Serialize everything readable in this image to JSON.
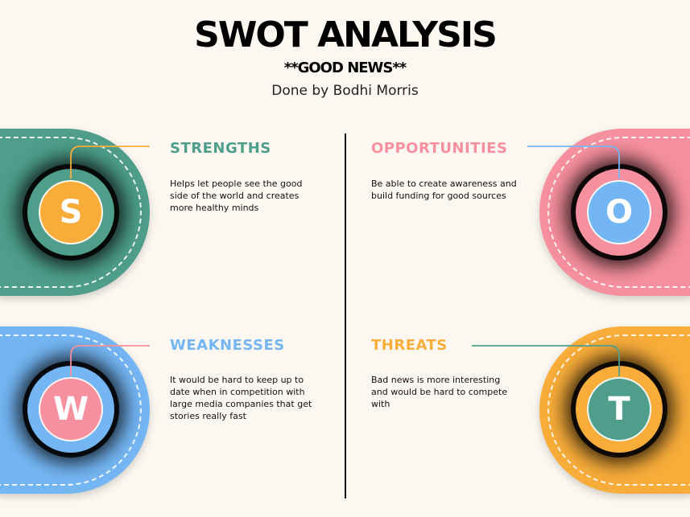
{
  "header": {
    "title": "SWOT ANALYSIS",
    "subtitle": "**GOOD NEWS**",
    "author": "Done by Bodhi Morris"
  },
  "quadrants": {
    "strengths": {
      "letter": "S",
      "heading": "STRENGTHS",
      "text": "Helps let people see the good side of the world and creates more healthy minds",
      "pill_color": "#4e9e8b",
      "circle_color": "#f8ad3a",
      "heading_color": "#4e9e8b",
      "connector_color": "#f8ad3a"
    },
    "opportunities": {
      "letter": "O",
      "heading": "OPPORTUNITIES",
      "text": "Be able to create awareness and build funding for good sources",
      "pill_color": "#f7909e",
      "circle_color": "#74b6f4",
      "heading_color": "#f7909e",
      "connector_color": "#74b6f4"
    },
    "weaknesses": {
      "letter": "W",
      "heading": "WEAKNESSES",
      "text": "It would be hard to keep up to date when in competition with large media companies that get stories really fast",
      "pill_color": "#74b6f4",
      "circle_color": "#f7909e",
      "heading_color": "#74b6f4",
      "connector_color": "#f7909e"
    },
    "threats": {
      "letter": "T",
      "heading": "THREATS",
      "text": "Bad news is more interesting and would be hard to compete with",
      "pill_color": "#f8ad3a",
      "circle_color": "#4e9e8b",
      "heading_color": "#f8ad3a",
      "connector_color": "#4e9e8b"
    }
  }
}
